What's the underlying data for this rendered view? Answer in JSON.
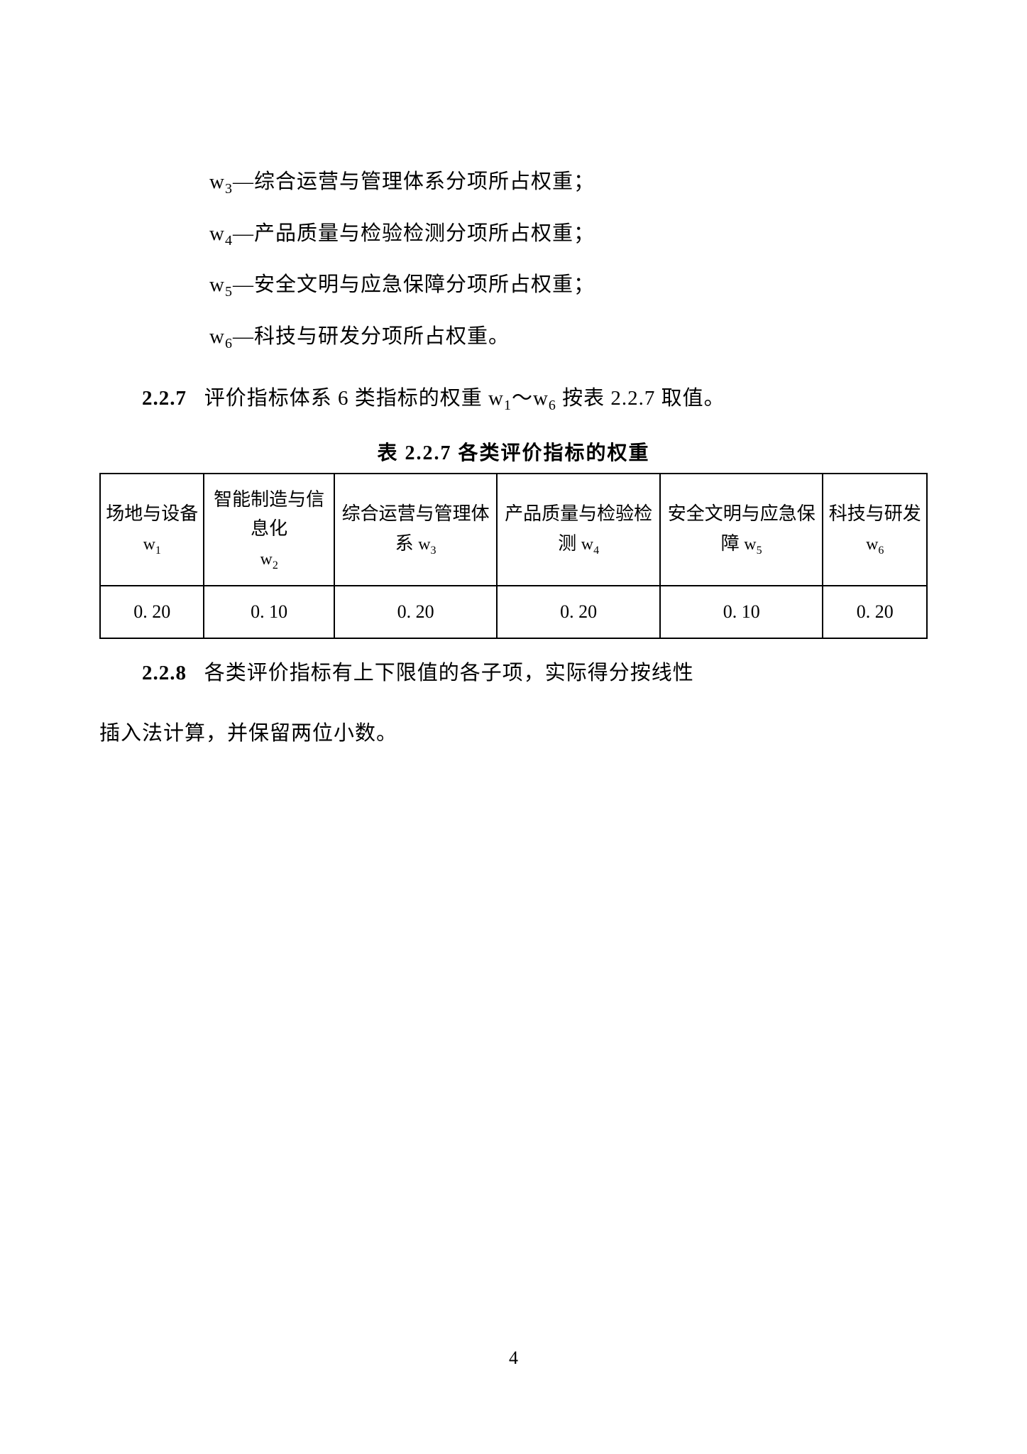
{
  "definitions": [
    {
      "prefix": "w",
      "sub": "3",
      "text": "—综合运营与管理体系分项所占权重；"
    },
    {
      "prefix": "w",
      "sub": "4",
      "text": "—产品质量与检验检测分项所占权重；"
    },
    {
      "prefix": "w",
      "sub": "5",
      "text": "—安全文明与应急保障分项所占权重；"
    },
    {
      "prefix": "w",
      "sub": "6",
      "text": "—科技与研发分项所占权重。"
    }
  ],
  "section_2_2_7": {
    "number": "2.2.7",
    "text_before": "评价指标体系 6 类指标的权重 w",
    "sub1": "1",
    "tilde": "～",
    "w2": "w",
    "sub2": "6",
    "text_after": " 按表 2.2.7 取值。"
  },
  "table": {
    "caption": "表 2.2.7  各类评价指标的权重",
    "headers": [
      {
        "label": "场地与设备 ",
        "wvar": "w",
        "wsub": "1"
      },
      {
        "label": "智能制造与信息化",
        "wvar": "w",
        "wsub": "2"
      },
      {
        "label": "综合运营与管理体系 ",
        "wvar": "w",
        "wsub": "3"
      },
      {
        "label": "产品质量与检验检测 ",
        "wvar": "w",
        "wsub": "4"
      },
      {
        "label": "安全文明与应急保障 ",
        "wvar": "w",
        "wsub": "5"
      },
      {
        "label": "科技与研发 ",
        "wvar": "w",
        "wsub": "6"
      }
    ],
    "values": [
      "0. 20",
      "0. 10",
      "0. 20",
      "0. 20",
      "0. 10",
      "0. 20"
    ]
  },
  "section_2_2_8": {
    "number": "2.2.8",
    "line1": "各类评价指标有上下限值的各子项，实际得分按线性",
    "line2": "插入法计算，并保留两位小数。"
  },
  "page_number": "4"
}
